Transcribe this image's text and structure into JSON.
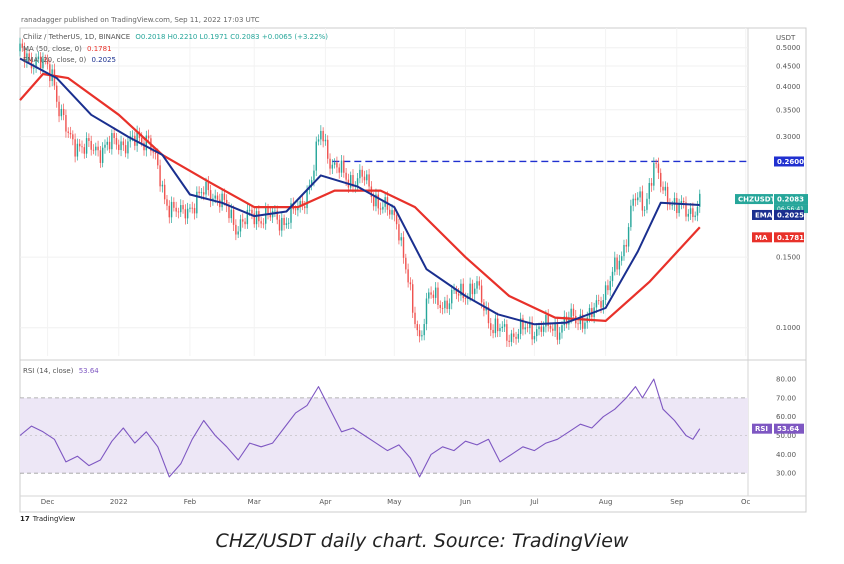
{
  "header": {
    "published": "ranadagger published on TradingView.com, Sep 11, 2022 17:03 UTC",
    "symbol_line": "Chiliz / TetherUS, 1D, BINANCE",
    "ohlc": "O0.2018  H0.2210  L0.1971  C0.2083  +0.0065 (+3.22%)",
    "ma_label": "MA (50, close, 0)",
    "ma_value": "0.1781",
    "ema_label": "EMA (20, close, 0)",
    "ema_value": "0.2025",
    "rsi_label": "RSI (14, close)",
    "rsi_value": "53.64"
  },
  "footer": {
    "logo_mark": "17",
    "logo_text": "TradingView"
  },
  "caption": "CHZ/USDT daily chart. Source: TradingView",
  "colors": {
    "ma": "#e8312a",
    "ema": "#1a2f8f",
    "up": "#26a69a",
    "down": "#ef5350",
    "resistance": "#2030d0",
    "rsi": "#7e57c2",
    "rsi_band": "#ede7f6"
  },
  "chart_data": [
    {
      "type": "candlestick",
      "title": "CHZUSDT",
      "currency": "USDT",
      "y_scale": "log",
      "ylim": [
        0.085,
        0.56
      ],
      "y_ticks": [
        "0.5000",
        "0.4500",
        "0.4000",
        "0.3500",
        "0.3000",
        "0.1500",
        "0.1000"
      ],
      "y_tick_values": [
        0.5,
        0.45,
        0.4,
        0.35,
        0.3,
        0.15,
        0.1
      ],
      "x_ticks": [
        "Dec",
        "2022",
        "Feb",
        "Mar",
        "Apr",
        "May",
        "Jun",
        "Jul",
        "Aug",
        "Sep",
        "Oc"
      ],
      "x_tick_dates": [
        "2021-12-01",
        "2022-01-01",
        "2022-02-01",
        "2022-03-01",
        "2022-04-01",
        "2022-05-01",
        "2022-06-01",
        "2022-07-01",
        "2022-08-01",
        "2022-09-01",
        "2022-10-01"
      ],
      "x_range": [
        "2021-11-19",
        "2022-10-02"
      ],
      "horizontal_line": {
        "value": 0.26,
        "label": "0.2600",
        "style": "dashed",
        "from": "2022-04-04"
      },
      "last_price": {
        "label": "CHZUSDT",
        "price": "0.2083",
        "countdown": "06:56:41",
        "value": 0.2083
      },
      "series": [
        {
          "name": "CHZUSDT",
          "points": [
            [
              "2021-11-19",
              0.49
            ],
            [
              "2021-11-26",
              0.46
            ],
            [
              "2021-12-03",
              0.44
            ],
            [
              "2021-12-06",
              0.35
            ],
            [
              "2021-12-10",
              0.3
            ],
            [
              "2021-12-17",
              0.28
            ],
            [
              "2021-12-24",
              0.28
            ],
            [
              "2021-12-31",
              0.29
            ],
            [
              "2022-01-07",
              0.29
            ],
            [
              "2022-01-14",
              0.3
            ],
            [
              "2022-01-21",
              0.21
            ],
            [
              "2022-01-28",
              0.19
            ],
            [
              "2022-02-04",
              0.21
            ],
            [
              "2022-02-09",
              0.22
            ],
            [
              "2022-02-14",
              0.21
            ],
            [
              "2022-02-21",
              0.18
            ],
            [
              "2022-02-28",
              0.19
            ],
            [
              "2022-03-07",
              0.19
            ],
            [
              "2022-03-14",
              0.185
            ],
            [
              "2022-03-21",
              0.2
            ],
            [
              "2022-03-26",
              0.235
            ],
            [
              "2022-03-30",
              0.31
            ],
            [
              "2022-04-04",
              0.255
            ],
            [
              "2022-04-11",
              0.235
            ],
            [
              "2022-04-18",
              0.235
            ],
            [
              "2022-04-25",
              0.2
            ],
            [
              "2022-05-02",
              0.19
            ],
            [
              "2022-05-09",
              0.11
            ],
            [
              "2022-05-12",
              0.095
            ],
            [
              "2022-05-16",
              0.12
            ],
            [
              "2022-05-23",
              0.115
            ],
            [
              "2022-05-30",
              0.123
            ],
            [
              "2022-06-06",
              0.125
            ],
            [
              "2022-06-13",
              0.1
            ],
            [
              "2022-06-20",
              0.096
            ],
            [
              "2022-06-27",
              0.099
            ],
            [
              "2022-07-04",
              0.1
            ],
            [
              "2022-07-11",
              0.1
            ],
            [
              "2022-07-18",
              0.106
            ],
            [
              "2022-07-25",
              0.105
            ],
            [
              "2022-08-01",
              0.125
            ],
            [
              "2022-08-08",
              0.15
            ],
            [
              "2022-08-13",
              0.21
            ],
            [
              "2022-08-18",
              0.2
            ],
            [
              "2022-08-22",
              0.26
            ],
            [
              "2022-08-26",
              0.215
            ],
            [
              "2022-09-01",
              0.205
            ],
            [
              "2022-09-06",
              0.19
            ],
            [
              "2022-09-11",
              0.2083
            ]
          ]
        },
        {
          "name": "EMA (20, close, 0)",
          "points": [
            [
              "2021-11-19",
              0.47
            ],
            [
              "2021-12-05",
              0.42
            ],
            [
              "2021-12-20",
              0.34
            ],
            [
              "2022-01-05",
              0.3
            ],
            [
              "2022-01-20",
              0.27
            ],
            [
              "2022-02-01",
              0.215
            ],
            [
              "2022-02-15",
              0.205
            ],
            [
              "2022-03-01",
              0.19
            ],
            [
              "2022-03-15",
              0.195
            ],
            [
              "2022-03-30",
              0.24
            ],
            [
              "2022-04-15",
              0.225
            ],
            [
              "2022-05-01",
              0.2
            ],
            [
              "2022-05-15",
              0.14
            ],
            [
              "2022-06-01",
              0.12
            ],
            [
              "2022-06-15",
              0.108
            ],
            [
              "2022-07-01",
              0.102
            ],
            [
              "2022-07-15",
              0.103
            ],
            [
              "2022-08-01",
              0.112
            ],
            [
              "2022-08-15",
              0.155
            ],
            [
              "2022-08-25",
              0.205
            ],
            [
              "2022-09-11",
              0.2025
            ]
          ]
        },
        {
          "name": "MA (50, close, 0)",
          "points": [
            [
              "2021-11-19",
              0.37
            ],
            [
              "2021-11-29",
              0.43
            ],
            [
              "2021-12-10",
              0.42
            ],
            [
              "2022-01-01",
              0.34
            ],
            [
              "2022-01-20",
              0.27
            ],
            [
              "2022-02-10",
              0.23
            ],
            [
              "2022-03-01",
              0.2
            ],
            [
              "2022-03-20",
              0.2
            ],
            [
              "2022-04-05",
              0.22
            ],
            [
              "2022-04-25",
              0.22
            ],
            [
              "2022-05-10",
              0.2
            ],
            [
              "2022-06-01",
              0.15
            ],
            [
              "2022-06-20",
              0.12
            ],
            [
              "2022-07-10",
              0.106
            ],
            [
              "2022-08-01",
              0.104
            ],
            [
              "2022-08-20",
              0.13
            ],
            [
              "2022-09-11",
              0.1781
            ]
          ]
        }
      ]
    },
    {
      "type": "line",
      "title": "RSI (14, close)",
      "ylim": [
        20,
        88
      ],
      "y_ticks": [
        "80.00",
        "70.00",
        "60.00",
        "50.00",
        "40.00",
        "30.00"
      ],
      "y_tick_values": [
        80,
        70,
        60,
        50,
        40,
        30
      ],
      "band": [
        30,
        70
      ],
      "mid_line": 50,
      "last_value": 53.64,
      "series": [
        {
          "name": "RSI (14, close)",
          "points": [
            [
              "2021-11-19",
              50
            ],
            [
              "2021-11-24",
              55
            ],
            [
              "2021-11-29",
              52
            ],
            [
              "2021-12-04",
              48
            ],
            [
              "2021-12-09",
              36
            ],
            [
              "2021-12-14",
              39
            ],
            [
              "2021-12-19",
              34
            ],
            [
              "2021-12-24",
              37
            ],
            [
              "2021-12-29",
              47
            ],
            [
              "2022-01-03",
              54
            ],
            [
              "2022-01-08",
              46
            ],
            [
              "2022-01-13",
              52
            ],
            [
              "2022-01-18",
              44
            ],
            [
              "2022-01-23",
              28
            ],
            [
              "2022-01-28",
              35
            ],
            [
              "2022-02-02",
              48
            ],
            [
              "2022-02-07",
              58
            ],
            [
              "2022-02-12",
              50
            ],
            [
              "2022-02-17",
              44
            ],
            [
              "2022-02-22",
              37
            ],
            [
              "2022-02-27",
              46
            ],
            [
              "2022-03-04",
              44
            ],
            [
              "2022-03-09",
              46
            ],
            [
              "2022-03-14",
              54
            ],
            [
              "2022-03-19",
              62
            ],
            [
              "2022-03-24",
              66
            ],
            [
              "2022-03-29",
              76
            ],
            [
              "2022-04-03",
              64
            ],
            [
              "2022-04-08",
              52
            ],
            [
              "2022-04-13",
              54
            ],
            [
              "2022-04-18",
              50
            ],
            [
              "2022-04-23",
              46
            ],
            [
              "2022-04-28",
              42
            ],
            [
              "2022-05-03",
              45
            ],
            [
              "2022-05-08",
              38
            ],
            [
              "2022-05-12",
              28
            ],
            [
              "2022-05-17",
              40
            ],
            [
              "2022-05-22",
              44
            ],
            [
              "2022-05-27",
              42
            ],
            [
              "2022-06-01",
              47
            ],
            [
              "2022-06-06",
              45
            ],
            [
              "2022-06-11",
              48
            ],
            [
              "2022-06-16",
              36
            ],
            [
              "2022-06-21",
              40
            ],
            [
              "2022-06-26",
              44
            ],
            [
              "2022-07-01",
              42
            ],
            [
              "2022-07-06",
              46
            ],
            [
              "2022-07-11",
              48
            ],
            [
              "2022-07-16",
              52
            ],
            [
              "2022-07-21",
              56
            ],
            [
              "2022-07-26",
              54
            ],
            [
              "2022-07-31",
              60
            ],
            [
              "2022-08-05",
              64
            ],
            [
              "2022-08-10",
              70
            ],
            [
              "2022-08-14",
              76
            ],
            [
              "2022-08-17",
              70
            ],
            [
              "2022-08-22",
              80
            ],
            [
              "2022-08-26",
              64
            ],
            [
              "2022-08-31",
              58
            ],
            [
              "2022-09-05",
              50
            ],
            [
              "2022-09-08",
              48
            ],
            [
              "2022-09-11",
              53.64
            ]
          ]
        }
      ]
    }
  ]
}
